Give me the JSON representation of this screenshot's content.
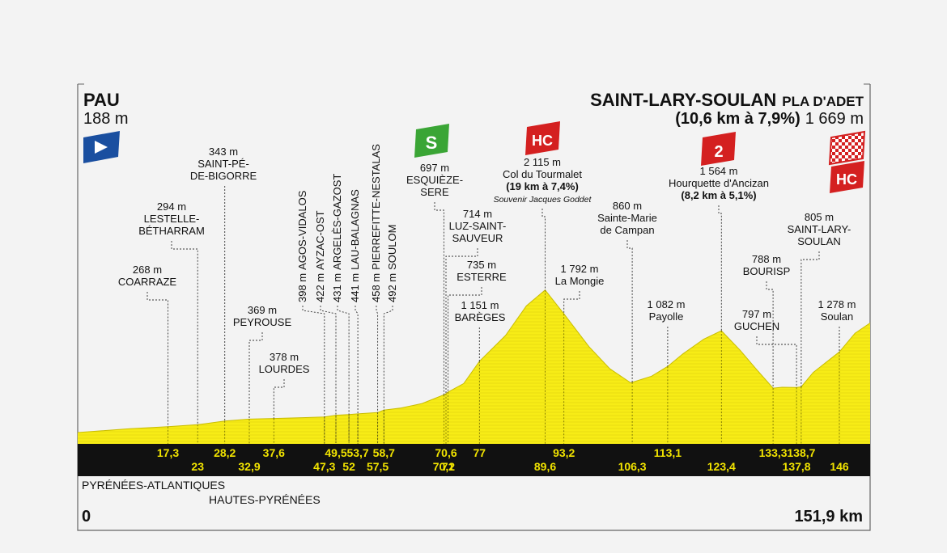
{
  "start": {
    "name": "PAU",
    "altitude": "188 m",
    "km_label": "0"
  },
  "finish": {
    "name": "SAINT-LARY-SOULAN",
    "suffix": "PLA D'ADET",
    "climb": "(10,6 km à 7,9%)",
    "altitude": "1 669 m",
    "km_label": "151,9 km"
  },
  "departments": [
    "PYRÉNÉES-ATLANTIQUES",
    "HAUTES-PYRÉNÉES"
  ],
  "colors": {
    "profile": "#f7ec16",
    "band": "#111111",
    "km_text": "#f1e300",
    "green_badge": "#3aa535",
    "red_badge": "#d42020",
    "blue_badge": "#1a4fa0",
    "frame": "#666666"
  },
  "icons": [
    "start-flag-icon",
    "sprint-badge-icon",
    "finish-flag-icon"
  ],
  "chart_data": {
    "type": "area",
    "xlim": [
      0,
      151.9
    ],
    "ylim": [
      0,
      2200
    ],
    "profile": [
      [
        0,
        188
      ],
      [
        10,
        240
      ],
      [
        17.3,
        268
      ],
      [
        23,
        294
      ],
      [
        28.2,
        343
      ],
      [
        32.9,
        369
      ],
      [
        37.6,
        378
      ],
      [
        47.3,
        398
      ],
      [
        49.5,
        422
      ],
      [
        52,
        431
      ],
      [
        53.7,
        441
      ],
      [
        57.5,
        458
      ],
      [
        58.7,
        492
      ],
      [
        62,
        520
      ],
      [
        66,
        580
      ],
      [
        70.2,
        697
      ],
      [
        70.6,
        714
      ],
      [
        71,
        735
      ],
      [
        74,
        850
      ],
      [
        77,
        1151
      ],
      [
        82,
        1500
      ],
      [
        86,
        1900
      ],
      [
        89.6,
        2115
      ],
      [
        93.2,
        1792
      ],
      [
        98,
        1350
      ],
      [
        102,
        1050
      ],
      [
        106,
        860
      ],
      [
        110,
        950
      ],
      [
        113.1,
        1082
      ],
      [
        116,
        1250
      ],
      [
        120,
        1450
      ],
      [
        123.4,
        1564
      ],
      [
        127,
        1300
      ],
      [
        130,
        1050
      ],
      [
        133.3,
        788
      ],
      [
        135,
        800
      ],
      [
        137.8,
        797
      ],
      [
        138.7,
        805
      ],
      [
        141,
        1000
      ],
      [
        146,
        1278
      ],
      [
        149,
        1530
      ],
      [
        151.9,
        1669
      ]
    ],
    "points": [
      {
        "km": "17,3",
        "alt": "268 m",
        "name": [
          "COARRAZE"
        ]
      },
      {
        "km": "23",
        "alt": "294 m",
        "name": [
          "LESTELLE-",
          "BÉTHARRAM"
        ]
      },
      {
        "km": "28,2",
        "alt": "343 m",
        "name": [
          "SAINT-PÉ-",
          "DE-BIGORRE"
        ]
      },
      {
        "km": "32,9",
        "alt": "369 m",
        "name": [
          "PEYROUSE"
        ]
      },
      {
        "km": "37,6",
        "alt": "378 m",
        "name": [
          "LOURDES"
        ]
      },
      {
        "km": "47,3",
        "alt": "398 m",
        "name": [
          "AGOS-VIDALOS"
        ]
      },
      {
        "km": "49,5",
        "alt": "422 m",
        "name": [
          "AYZAC-OST"
        ]
      },
      {
        "km": "52",
        "alt": "431 m",
        "name": [
          "ARGELÈS-GAZOST"
        ]
      },
      {
        "km": "53,7",
        "alt": "441 m",
        "name": [
          "LAU-BALAGNAS"
        ]
      },
      {
        "km": "57,5",
        "alt": "458 m",
        "name": [
          "PIERREFITTE-NESTALAS"
        ]
      },
      {
        "km": "58,7",
        "alt": "492 m",
        "name": [
          "SOULOM"
        ]
      },
      {
        "km": "70,2",
        "alt": "697 m",
        "name": [
          "ESQUIÈZE-",
          "SERE"
        ]
      },
      {
        "km": "70,6",
        "alt": "714 m",
        "name": [
          "LUZ-SAINT-",
          "SAUVEUR"
        ]
      },
      {
        "km": "71",
        "alt": "735 m",
        "name": [
          "ESTERRE"
        ]
      },
      {
        "km": "77",
        "alt": "1 151 m",
        "name": [
          "BARÈGES"
        ]
      },
      {
        "km": "89,6",
        "alt": "2 115 m",
        "name": [
          "Col du Tourmalet",
          "(19 km à 7,4%)",
          "Souvenir Jacques Goddet"
        ]
      },
      {
        "km": "93,2",
        "alt": "1 792 m",
        "name": [
          "La Mongie"
        ]
      },
      {
        "km": "106,3",
        "alt": "860 m",
        "name": [
          "Sainte-Marie",
          "de Campan"
        ]
      },
      {
        "km": "113,1",
        "alt": "1 082 m",
        "name": [
          "Payolle"
        ]
      },
      {
        "km": "123,4",
        "alt": "1 564 m",
        "name": [
          "Hourquette d'Ancizan",
          "(8,2 km à 5,1%)"
        ]
      },
      {
        "km": "133,3",
        "alt": "788 m",
        "name": [
          "BOURISP"
        ]
      },
      {
        "km": "137,8",
        "alt": "797 m",
        "name": [
          "GUCHEN"
        ]
      },
      {
        "km": "138,7",
        "alt": "805 m",
        "name": [
          "SAINT-LARY-",
          "SOULAN"
        ]
      },
      {
        "km": "146",
        "alt": "1 278 m",
        "name": [
          "Soulan"
        ]
      }
    ],
    "badges": [
      {
        "label": "S",
        "category": "sprint"
      },
      {
        "label": "HC",
        "category": "Col du Tourmalet"
      },
      {
        "label": "2",
        "category": "Hourquette d'Ancizan"
      },
      {
        "label": "HC",
        "category": "finish"
      }
    ]
  }
}
